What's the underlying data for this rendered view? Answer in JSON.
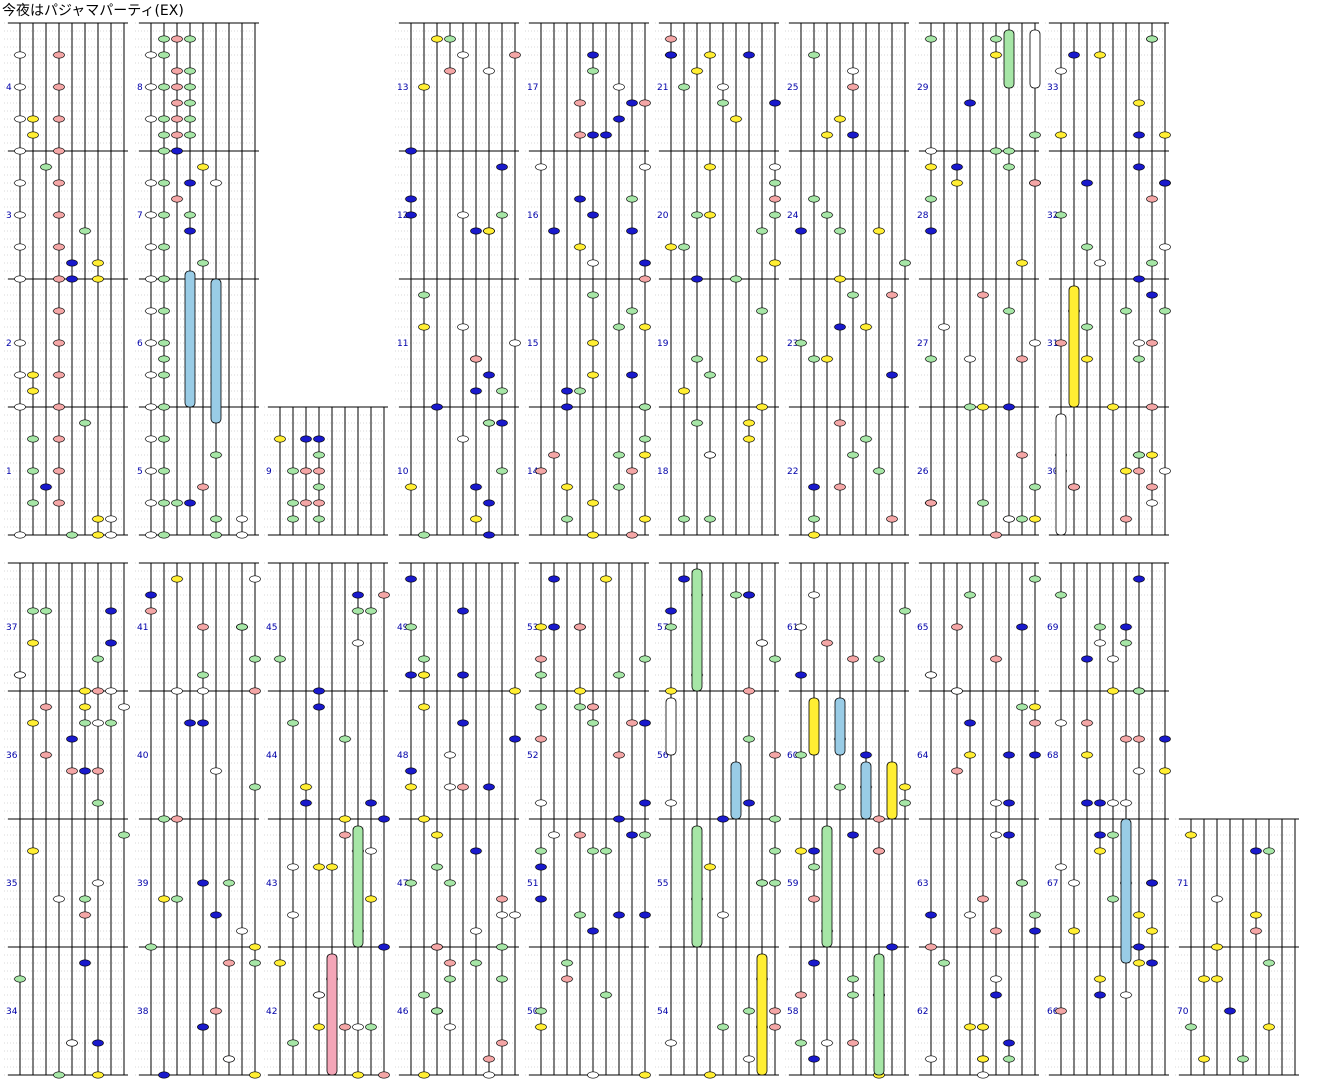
{
  "title": "今夜はパジャマパーティ(EX)",
  "palette": {
    "white": "#ffffff",
    "pink": "#f4a6a6",
    "green": "#a6e6a6",
    "yellow": "#ffee33",
    "blue": "#1a1acc",
    "lightblue": "#99cce6",
    "longpink": "#f4a6b8",
    "line": "#000000",
    "dot": "#b0b0b0",
    "measure_number": "#0000aa"
  },
  "lanes": 9,
  "subdiv": 16,
  "measures": [
    {
      "n": 1,
      "notes": [
        [
          0,
          0,
          "white"
        ],
        [
          1,
          4,
          "green"
        ],
        [
          1,
          8,
          "green"
        ],
        [
          1,
          12,
          "green"
        ],
        [
          2,
          6,
          "blue"
        ],
        [
          3,
          4,
          "pink"
        ],
        [
          3,
          8,
          "pink"
        ],
        [
          3,
          12,
          "pink"
        ],
        [
          4,
          0,
          "green"
        ],
        [
          5,
          14,
          "green"
        ],
        [
          6,
          0,
          "yellow"
        ],
        [
          6,
          2,
          "yellow"
        ],
        [
          7,
          0,
          "white"
        ],
        [
          7,
          2,
          "white"
        ]
      ]
    },
    {
      "n": 2,
      "notes": [
        [
          0,
          0,
          "white"
        ],
        [
          0,
          4,
          "white"
        ],
        [
          0,
          8,
          "white"
        ],
        [
          1,
          2,
          "yellow"
        ],
        [
          1,
          4,
          "yellow"
        ],
        [
          3,
          0,
          "pink"
        ],
        [
          3,
          4,
          "pink"
        ],
        [
          3,
          8,
          "pink"
        ],
        [
          3,
          12,
          "pink"
        ]
      ]
    },
    {
      "n": 3,
      "notes": [
        [
          0,
          0,
          "white"
        ],
        [
          0,
          4,
          "white"
        ],
        [
          0,
          8,
          "white"
        ],
        [
          0,
          12,
          "white"
        ],
        [
          2,
          14,
          "green"
        ],
        [
          3,
          0,
          "pink"
        ],
        [
          3,
          4,
          "pink"
        ],
        [
          3,
          8,
          "pink"
        ],
        [
          3,
          12,
          "pink"
        ],
        [
          4,
          0,
          "blue"
        ],
        [
          4,
          2,
          "blue"
        ],
        [
          5,
          6,
          "green"
        ],
        [
          6,
          0,
          "yellow"
        ],
        [
          6,
          2,
          "yellow"
        ]
      ]
    },
    {
      "n": 4,
      "notes": [
        [
          0,
          0,
          "white"
        ],
        [
          0,
          4,
          "white"
        ],
        [
          0,
          8,
          "white"
        ],
        [
          0,
          12,
          "white"
        ],
        [
          1,
          2,
          "yellow"
        ],
        [
          1,
          4,
          "yellow"
        ],
        [
          3,
          0,
          "pink"
        ],
        [
          3,
          4,
          "pink"
        ],
        [
          3,
          8,
          "pink"
        ],
        [
          3,
          12,
          "pink"
        ]
      ]
    },
    {
      "n": 5,
      "notes": [
        [
          0,
          0,
          "white"
        ],
        [
          0,
          4,
          "white"
        ],
        [
          0,
          8,
          "white"
        ],
        [
          0,
          12,
          "white"
        ],
        [
          1,
          0,
          "green"
        ],
        [
          1,
          4,
          "green"
        ],
        [
          1,
          8,
          "green"
        ],
        [
          1,
          12,
          "green"
        ],
        [
          2,
          4,
          "green"
        ],
        [
          3,
          4,
          "blue"
        ],
        [
          4,
          6,
          "pink"
        ],
        [
          5,
          2,
          "green"
        ],
        [
          5,
          10,
          "green"
        ],
        [
          5,
          0,
          "green"
        ],
        [
          7,
          0,
          "white"
        ],
        [
          7,
          2,
          "white"
        ]
      ]
    },
    {
      "n": 6,
      "notes": [
        [
          0,
          0,
          "white"
        ],
        [
          0,
          4,
          "white"
        ],
        [
          0,
          8,
          "white"
        ],
        [
          0,
          12,
          "white"
        ],
        [
          1,
          4,
          "green"
        ],
        [
          1,
          6,
          "green"
        ],
        [
          1,
          8,
          "green"
        ],
        [
          1,
          12,
          "green"
        ],
        [
          1,
          0,
          "green"
        ],
        [
          3,
          0,
          "lightblue_end"
        ]
      ]
    },
    {
      "n": 7,
      "notes": [
        [
          0,
          0,
          "white"
        ],
        [
          0,
          4,
          "white"
        ],
        [
          0,
          8,
          "white"
        ],
        [
          0,
          12,
          "white"
        ],
        [
          1,
          4,
          "green"
        ],
        [
          1,
          8,
          "green"
        ],
        [
          1,
          12,
          "green"
        ],
        [
          1,
          0,
          "green"
        ],
        [
          2,
          10,
          "pink"
        ],
        [
          3,
          6,
          "blue"
        ],
        [
          3,
          12,
          "blue"
        ],
        [
          4,
          2,
          "green"
        ],
        [
          3,
          8,
          "green"
        ],
        [
          4,
          14,
          "yellow"
        ],
        [
          5,
          12,
          "white"
        ]
      ]
    },
    {
      "n": 8,
      "notes": [
        [
          0,
          8,
          "white"
        ],
        [
          0,
          12,
          "white"
        ],
        [
          0,
          4,
          "white"
        ],
        [
          1,
          0,
          "green"
        ],
        [
          1,
          4,
          "green"
        ],
        [
          1,
          8,
          "green"
        ],
        [
          1,
          12,
          "green"
        ],
        [
          1,
          14,
          "green"
        ],
        [
          1,
          2,
          "green"
        ],
        [
          2,
          2,
          "pink"
        ],
        [
          2,
          6,
          "pink"
        ],
        [
          2,
          10,
          "pink"
        ],
        [
          2,
          14,
          "pink"
        ],
        [
          2,
          4,
          "pink"
        ],
        [
          2,
          8,
          "pink"
        ],
        [
          3,
          2,
          "green"
        ],
        [
          3,
          6,
          "green"
        ],
        [
          3,
          10,
          "green"
        ],
        [
          3,
          14,
          "green"
        ],
        [
          3,
          4,
          "green"
        ],
        [
          3,
          8,
          "green"
        ],
        [
          2,
          0,
          "blue"
        ]
      ]
    },
    {
      "n": 9,
      "notes": [
        [
          0,
          12,
          "yellow"
        ],
        [
          1,
          4,
          "green"
        ],
        [
          1,
          8,
          "green"
        ],
        [
          1,
          2,
          "green"
        ],
        [
          2,
          12,
          "blue"
        ],
        [
          2,
          8,
          "pink"
        ],
        [
          2,
          4,
          "pink"
        ],
        [
          3,
          12,
          "blue"
        ],
        [
          3,
          2,
          "green"
        ],
        [
          3,
          6,
          "green"
        ],
        [
          3,
          10,
          "green"
        ],
        [
          3,
          4,
          "pink"
        ],
        [
          3,
          8,
          "pink"
        ]
      ]
    }
  ],
  "note_summary": "Rhythm game chart: each column section is 4 measures; numbered 1 to 71 with notes in white, pink, green, yellow, blue and long holds in lightblue, yellow, green, white and pink.",
  "measure_numbers": [
    "1",
    "2",
    "3",
    "4",
    "5",
    "6",
    "7",
    "8",
    "9",
    "10",
    "11",
    "12",
    "13",
    "14",
    "15",
    "16",
    "17",
    "18",
    "19",
    "20",
    "21",
    "22",
    "23",
    "24",
    "25",
    "26",
    "27",
    "28",
    "29",
    "30",
    "31",
    "32",
    "33",
    "34",
    "35",
    "36",
    "37",
    "38",
    "39",
    "40",
    "41",
    "42",
    "43",
    "44",
    "45",
    "46",
    "47",
    "48",
    "49",
    "50",
    "51",
    "52",
    "53",
    "54",
    "55",
    "56",
    "57",
    "58",
    "59",
    "60",
    "61",
    "62",
    "63",
    "64",
    "65",
    "66",
    "67",
    "68",
    "69",
    "70",
    "71"
  ]
}
